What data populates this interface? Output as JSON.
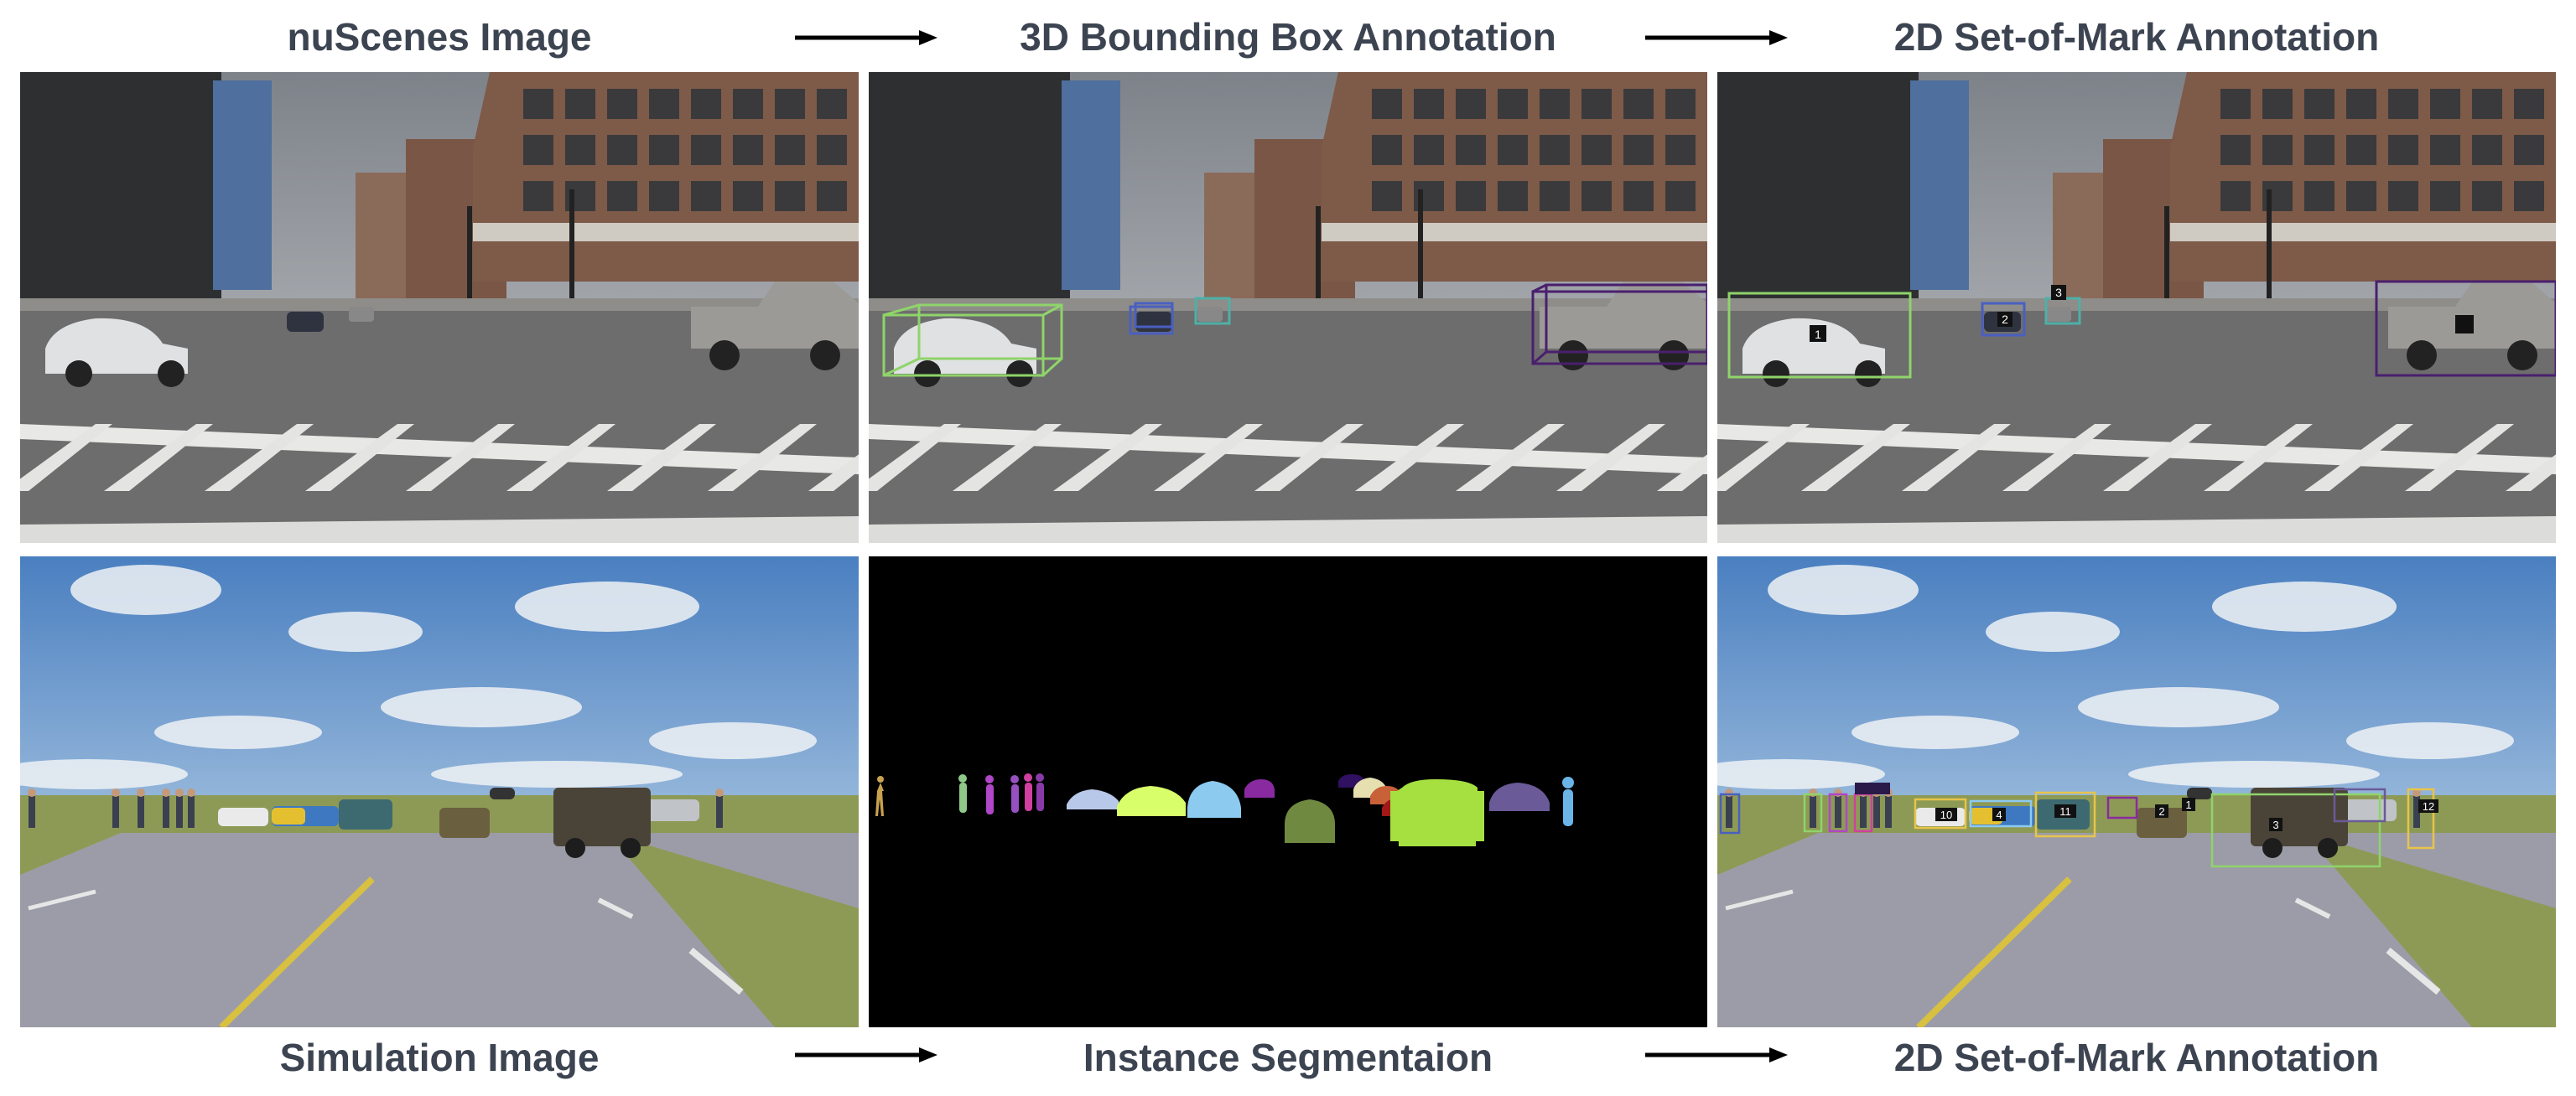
{
  "titles": {
    "top_left": "nuScenes Image",
    "top_middle": "3D Bounding Box Annotation",
    "top_right": "2D Set-of-Mark Annotation",
    "bottom_left": "Simulation Image",
    "bottom_middle": "Instance Segmentaion",
    "bottom_right": "2D Set-of-Mark Annotation"
  },
  "top_marks": [
    "1",
    "2",
    "3"
  ],
  "bottom_marks": [
    "1",
    "2",
    "3",
    "4",
    "10",
    "11",
    "12"
  ],
  "colors": {
    "title_text": "#3d4451",
    "arrow": "#000000",
    "box_green": "#8fd46a",
    "box_blue": "#4a5fc0",
    "box_teal": "#4fb0a8",
    "box_purple": "#4a1f6e",
    "box_yellow": "#e8c44a"
  }
}
